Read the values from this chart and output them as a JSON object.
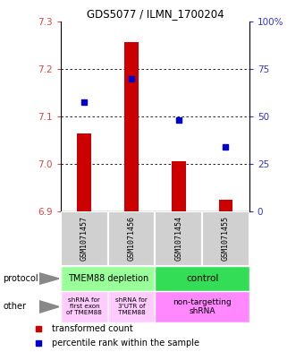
{
  "title": "GDS5077 / ILMN_1700204",
  "samples": [
    "GSM1071457",
    "GSM1071456",
    "GSM1071454",
    "GSM1071455"
  ],
  "bar_bottoms": [
    6.9,
    6.9,
    6.9,
    6.9
  ],
  "bar_tops": [
    7.063,
    7.255,
    7.005,
    6.925
  ],
  "blue_y": [
    7.13,
    7.178,
    7.092,
    7.035
  ],
  "ylim": [
    6.9,
    7.3
  ],
  "y_ticks_left": [
    6.9,
    7.0,
    7.1,
    7.2,
    7.3
  ],
  "y_ticks_right": [
    0,
    25,
    50,
    75,
    100
  ],
  "y_right_labels": [
    "0",
    "25",
    "50",
    "75",
    "100%"
  ],
  "bar_color": "#cc0000",
  "blue_color": "#0000cc",
  "protocol_labels": [
    "TMEM88 depletion",
    "control"
  ],
  "protocol_colors": [
    "#99ff99",
    "#33dd55"
  ],
  "other_labels_left1": "shRNA for\nfirst exon\nof TMEM88",
  "other_labels_left2": "shRNA for\n3'UTR of\nTMEM88",
  "other_labels_right": "non-targetting\nshRNA",
  "other_color_left": "#ffccff",
  "other_color_right": "#ff88ff",
  "legend_bar_color": "#cc0000",
  "legend_dot_color": "#0000cc",
  "bg_color": "#ffffff",
  "tick_label_color_left": "#dd4444",
  "tick_label_color_right": "#3333cc",
  "bar_width": 0.3,
  "sample_box_color": "#d0d0d0",
  "sample_box_edge": "#aaaaaa"
}
